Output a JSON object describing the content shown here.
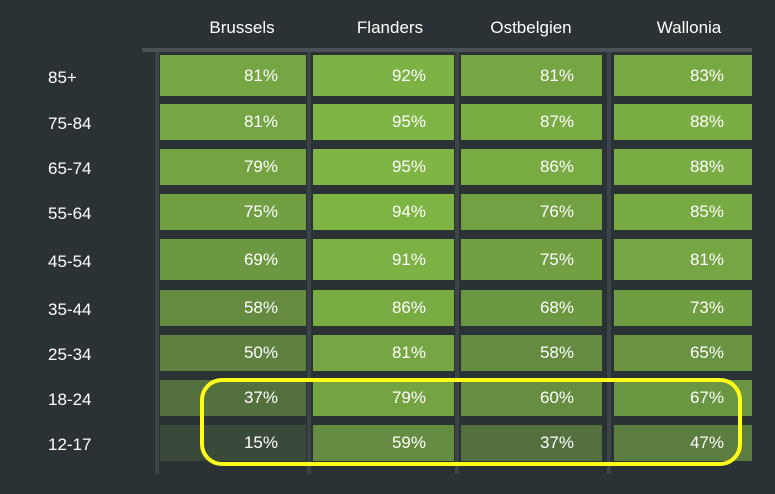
{
  "chart_data": {
    "type": "heatmap",
    "columns": [
      "Brussels",
      "Flanders",
      "Ostbelgien",
      "Wallonia"
    ],
    "rows": [
      "85+",
      "75-84",
      "65-74",
      "55-64",
      "45-54",
      "35-44",
      "25-34",
      "18-24",
      "12-17"
    ],
    "values": [
      [
        81,
        92,
        81,
        83
      ],
      [
        81,
        95,
        87,
        88
      ],
      [
        79,
        95,
        86,
        88
      ],
      [
        75,
        94,
        76,
        85
      ],
      [
        69,
        91,
        75,
        81
      ],
      [
        58,
        86,
        68,
        73
      ],
      [
        50,
        81,
        58,
        65
      ],
      [
        37,
        79,
        60,
        67
      ],
      [
        15,
        59,
        37,
        47
      ]
    ],
    "value_suffix": "%",
    "highlighted_rows": [
      "18-24",
      "12-17"
    ],
    "colors": {
      "background": "#2b3236",
      "cell_high": "#7fb544",
      "cell_low": "#3a4a3a",
      "highlight": "#ffff1a",
      "text": "#ffffff"
    }
  }
}
